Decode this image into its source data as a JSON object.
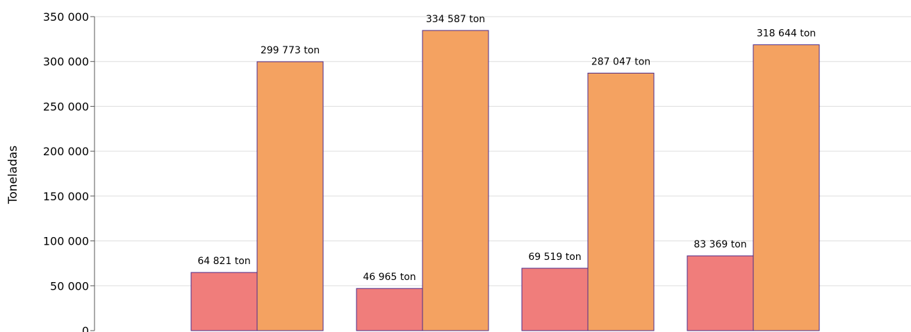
{
  "chart_data": {
    "type": "bar",
    "title": "",
    "xlabel": "",
    "ylabel": "Toneladas",
    "ylim": [
      0,
      350000
    ],
    "yticks": [
      0,
      50000,
      100000,
      150000,
      200000,
      250000,
      300000,
      350000
    ],
    "ytick_labels": [
      "0",
      "50 000",
      "100 000",
      "150 000",
      "200 000",
      "250 000",
      "300 000",
      "350 000"
    ],
    "grid": true,
    "legend": "none",
    "categories": [
      "",
      "",
      "",
      ""
    ],
    "series": [
      {
        "values": [
          64821,
          46965,
          69519,
          83369
        ],
        "labels": [
          "64 821 ton",
          "46 965 ton",
          "69 519 ton",
          "83 369 ton"
        ],
        "color": "#f07d7b"
      },
      {
        "values": [
          299773,
          334587,
          287047,
          318644
        ],
        "labels": [
          "299 773 ton",
          "334 587 ton",
          "287 047 ton",
          "318 644 ton"
        ],
        "color": "#f4a261"
      }
    ],
    "bar_edge_color": "#4b2a8a",
    "gridline_color": "#dddddd",
    "axis_color": "#555555"
  }
}
